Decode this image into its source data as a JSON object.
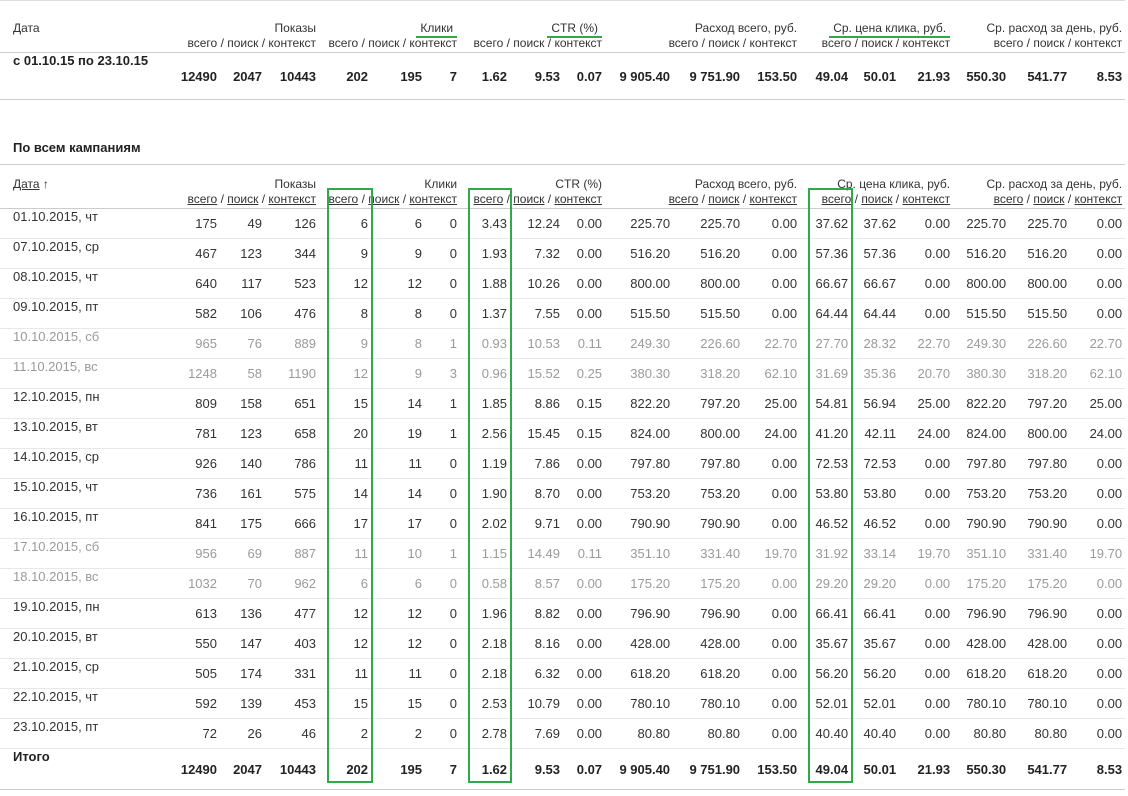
{
  "summary_table": {
    "date_header": "Дата",
    "sub_labels": [
      "всего",
      "поиск",
      "контекст"
    ],
    "sub_separator": "/",
    "groups": [
      "Показы",
      "Клики",
      "CTR (%)",
      "Расход всего, руб.",
      "Ср. цена клика, руб.",
      "Ср. расход за день, руб."
    ],
    "row": {
      "date": "с 01.10.15 по 23.10.15",
      "cells": [
        "12490",
        "2047",
        "10443",
        "202",
        "195",
        "7",
        "1.62",
        "9.53",
        "0.07",
        "9 905.40",
        "9 751.90",
        "153.50",
        "49.04",
        "50.01",
        "21.93",
        "550.30",
        "541.77",
        "8.53"
      ]
    }
  },
  "campaigns": {
    "title": "По всем кампаниям",
    "date_header": "Дата",
    "sort_indicator": "↑",
    "sub_labels": [
      "всего",
      "поиск",
      "контекст"
    ],
    "sub_separator": "/",
    "groups": [
      "Показы",
      "Клики",
      "CTR (%)",
      "Расход всего, руб.",
      "Ср. цена клика, руб.",
      "Ср. расход за день, руб."
    ],
    "rows": [
      {
        "date": "01.10.2015, чт",
        "cells": [
          "175",
          "49",
          "126",
          "6",
          "6",
          "0",
          "3.43",
          "12.24",
          "0.00",
          "225.70",
          "225.70",
          "0.00",
          "37.62",
          "37.62",
          "0.00",
          "225.70",
          "225.70",
          "0.00"
        ]
      },
      {
        "date": "07.10.2015, ср",
        "cells": [
          "467",
          "123",
          "344",
          "9",
          "9",
          "0",
          "1.93",
          "7.32",
          "0.00",
          "516.20",
          "516.20",
          "0.00",
          "57.36",
          "57.36",
          "0.00",
          "516.20",
          "516.20",
          "0.00"
        ]
      },
      {
        "date": "08.10.2015, чт",
        "cells": [
          "640",
          "117",
          "523",
          "12",
          "12",
          "0",
          "1.88",
          "10.26",
          "0.00",
          "800.00",
          "800.00",
          "0.00",
          "66.67",
          "66.67",
          "0.00",
          "800.00",
          "800.00",
          "0.00"
        ]
      },
      {
        "date": "09.10.2015, пт",
        "cells": [
          "582",
          "106",
          "476",
          "8",
          "8",
          "0",
          "1.37",
          "7.55",
          "0.00",
          "515.50",
          "515.50",
          "0.00",
          "64.44",
          "64.44",
          "0.00",
          "515.50",
          "515.50",
          "0.00"
        ]
      },
      {
        "date": "10.10.2015, сб",
        "cells": [
          "965",
          "76",
          "889",
          "9",
          "8",
          "1",
          "0.93",
          "10.53",
          "0.11",
          "249.30",
          "226.60",
          "22.70",
          "27.70",
          "28.32",
          "22.70",
          "249.30",
          "226.60",
          "22.70"
        ]
      },
      {
        "date": "11.10.2015, вс",
        "cells": [
          "1248",
          "58",
          "1190",
          "12",
          "9",
          "3",
          "0.96",
          "15.52",
          "0.25",
          "380.30",
          "318.20",
          "62.10",
          "31.69",
          "35.36",
          "20.70",
          "380.30",
          "318.20",
          "62.10"
        ]
      },
      {
        "date": "12.10.2015, пн",
        "cells": [
          "809",
          "158",
          "651",
          "15",
          "14",
          "1",
          "1.85",
          "8.86",
          "0.15",
          "822.20",
          "797.20",
          "25.00",
          "54.81",
          "56.94",
          "25.00",
          "822.20",
          "797.20",
          "25.00"
        ]
      },
      {
        "date": "13.10.2015, вт",
        "cells": [
          "781",
          "123",
          "658",
          "20",
          "19",
          "1",
          "2.56",
          "15.45",
          "0.15",
          "824.00",
          "800.00",
          "24.00",
          "41.20",
          "42.11",
          "24.00",
          "824.00",
          "800.00",
          "24.00"
        ]
      },
      {
        "date": "14.10.2015, ср",
        "cells": [
          "926",
          "140",
          "786",
          "11",
          "11",
          "0",
          "1.19",
          "7.86",
          "0.00",
          "797.80",
          "797.80",
          "0.00",
          "72.53",
          "72.53",
          "0.00",
          "797.80",
          "797.80",
          "0.00"
        ]
      },
      {
        "date": "15.10.2015, чт",
        "cells": [
          "736",
          "161",
          "575",
          "14",
          "14",
          "0",
          "1.90",
          "8.70",
          "0.00",
          "753.20",
          "753.20",
          "0.00",
          "53.80",
          "53.80",
          "0.00",
          "753.20",
          "753.20",
          "0.00"
        ]
      },
      {
        "date": "16.10.2015, пт",
        "cells": [
          "841",
          "175",
          "666",
          "17",
          "17",
          "0",
          "2.02",
          "9.71",
          "0.00",
          "790.90",
          "790.90",
          "0.00",
          "46.52",
          "46.52",
          "0.00",
          "790.90",
          "790.90",
          "0.00"
        ]
      },
      {
        "date": "17.10.2015, сб",
        "cells": [
          "956",
          "69",
          "887",
          "11",
          "10",
          "1",
          "1.15",
          "14.49",
          "0.11",
          "351.10",
          "331.40",
          "19.70",
          "31.92",
          "33.14",
          "19.70",
          "351.10",
          "331.40",
          "19.70"
        ]
      },
      {
        "date": "18.10.2015, вс",
        "cells": [
          "1032",
          "70",
          "962",
          "6",
          "6",
          "0",
          "0.58",
          "8.57",
          "0.00",
          "175.20",
          "175.20",
          "0.00",
          "29.20",
          "29.20",
          "0.00",
          "175.20",
          "175.20",
          "0.00"
        ]
      },
      {
        "date": "19.10.2015, пн",
        "cells": [
          "613",
          "136",
          "477",
          "12",
          "12",
          "0",
          "1.96",
          "8.82",
          "0.00",
          "796.90",
          "796.90",
          "0.00",
          "66.41",
          "66.41",
          "0.00",
          "796.90",
          "796.90",
          "0.00"
        ]
      },
      {
        "date": "20.10.2015, вт",
        "cells": [
          "550",
          "147",
          "403",
          "12",
          "12",
          "0",
          "2.18",
          "8.16",
          "0.00",
          "428.00",
          "428.00",
          "0.00",
          "35.67",
          "35.67",
          "0.00",
          "428.00",
          "428.00",
          "0.00"
        ]
      },
      {
        "date": "21.10.2015, ср",
        "cells": [
          "505",
          "174",
          "331",
          "11",
          "11",
          "0",
          "2.18",
          "6.32",
          "0.00",
          "618.20",
          "618.20",
          "0.00",
          "56.20",
          "56.20",
          "0.00",
          "618.20",
          "618.20",
          "0.00"
        ]
      },
      {
        "date": "22.10.2015, чт",
        "cells": [
          "592",
          "139",
          "453",
          "15",
          "15",
          "0",
          "2.53",
          "10.79",
          "0.00",
          "780.10",
          "780.10",
          "0.00",
          "52.01",
          "52.01",
          "0.00",
          "780.10",
          "780.10",
          "0.00"
        ]
      },
      {
        "date": "23.10.2015, пт",
        "cells": [
          "72",
          "26",
          "46",
          "2",
          "2",
          "0",
          "2.78",
          "7.69",
          "0.00",
          "80.80",
          "80.80",
          "0.00",
          "40.40",
          "40.40",
          "0.00",
          "80.80",
          "80.80",
          "0.00"
        ]
      }
    ],
    "total": {
      "label": "Итого",
      "cells": [
        "12490",
        "2047",
        "10443",
        "202",
        "195",
        "7",
        "1.62",
        "9.53",
        "0.07",
        "9 905.40",
        "9 751.90",
        "153.50",
        "49.04",
        "50.01",
        "21.93",
        "550.30",
        "541.77",
        "8.53"
      ]
    }
  }
}
